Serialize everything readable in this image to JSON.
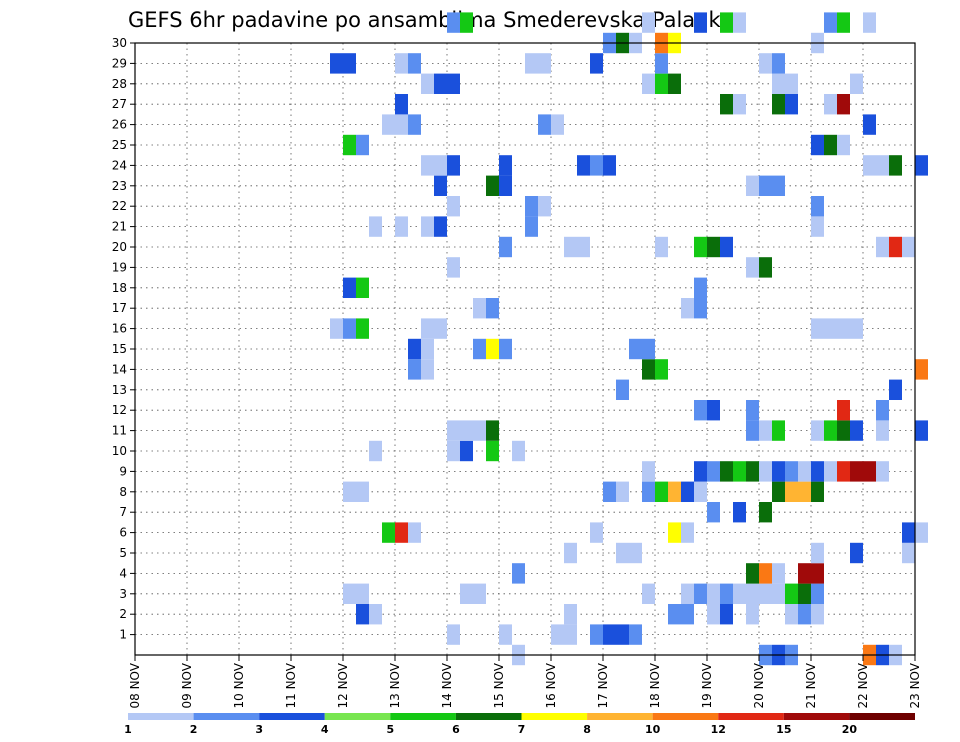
{
  "chart_data": {
    "type": "heatmap",
    "title": "GEFS 6hr padavine po ansamblima Smederevska Palanka",
    "xlabel": "",
    "ylabel": "",
    "x_ticks": [
      "08 NOV",
      "09 NOV",
      "10 NOV",
      "11 NOV",
      "12 NOV",
      "13 NOV",
      "14 NOV",
      "15 NOV",
      "16 NOV",
      "17 NOV",
      "18 NOV",
      "19 NOV",
      "20 NOV",
      "21 NOV",
      "22 NOV",
      "23 NOV"
    ],
    "y_ticks": [
      "1",
      "2",
      "3",
      "4",
      "5",
      "6",
      "7",
      "8",
      "9",
      "10",
      "11",
      "12",
      "13",
      "14",
      "15",
      "16",
      "17",
      "18",
      "19",
      "20",
      "21",
      "22",
      "23",
      "24",
      "25",
      "26",
      "27",
      "28",
      "29",
      "30"
    ],
    "grid": true,
    "legend_placement": "bottom",
    "legend": {
      "labels": [
        "1",
        "2",
        "3",
        "4",
        "5",
        "6",
        "7",
        "8",
        "10",
        "12",
        "15",
        "20"
      ],
      "colors": [
        "#b4c8f5",
        "#5a8ef0",
        "#1a50dc",
        "#78e650",
        "#14c814",
        "#0a6e0a",
        "#ffff00",
        "#ffb432",
        "#fa7814",
        "#e12814",
        "#a00a0a",
        "#6e0000"
      ]
    },
    "x_range": [
      "08 NOV",
      "23 NOV"
    ],
    "y_range": [
      0,
      30
    ],
    "cells": [
      [
        1,
        "14.00",
        0
      ],
      [
        1,
        "15.00",
        0
      ],
      [
        1,
        "16.00",
        0
      ],
      [
        1,
        "16.25",
        0
      ],
      [
        1,
        "16.75",
        1
      ],
      [
        1,
        "17.00",
        2
      ],
      [
        1,
        "17.25",
        2
      ],
      [
        1,
        "17.50",
        1
      ],
      [
        2,
        "12.25",
        2
      ],
      [
        2,
        "12.50",
        0
      ],
      [
        2,
        "16.25",
        0
      ],
      [
        2,
        "18.25",
        1
      ],
      [
        2,
        "18.50",
        1
      ],
      [
        2,
        "19.00",
        0
      ],
      [
        2,
        "19.25",
        2
      ],
      [
        2,
        "19.75",
        0
      ],
      [
        2,
        "20.50",
        0
      ],
      [
        2,
        "20.75",
        1
      ],
      [
        2,
        "21.00",
        0
      ],
      [
        3,
        "12.00",
        0
      ],
      [
        3,
        "12.25",
        0
      ],
      [
        3,
        "14.25",
        0
      ],
      [
        3,
        "14.50",
        0
      ],
      [
        3,
        "17.75",
        0
      ],
      [
        3,
        "18.50",
        0
      ],
      [
        3,
        "18.75",
        1
      ],
      [
        3,
        "19.00",
        0
      ],
      [
        3,
        "19.25",
        1
      ],
      [
        3,
        "19.50",
        0
      ],
      [
        3,
        "19.75",
        0
      ],
      [
        3,
        "20.00",
        0
      ],
      [
        3,
        "20.25",
        0
      ],
      [
        3,
        "20.50",
        4
      ],
      [
        3,
        "20.75",
        5
      ],
      [
        3,
        "21.00",
        1
      ],
      [
        4,
        "15.25",
        1
      ],
      [
        4,
        "19.75",
        5
      ],
      [
        4,
        "20.00",
        8
      ],
      [
        4,
        "20.25",
        0
      ],
      [
        4,
        "20.75",
        10
      ],
      [
        4,
        "21.00",
        10
      ],
      [
        5,
        "16.25",
        0
      ],
      [
        5,
        "17.25",
        0
      ],
      [
        5,
        "17.50",
        0
      ],
      [
        5,
        "21.00",
        0
      ],
      [
        5,
        "21.75",
        2
      ],
      [
        5,
        "22.75",
        0
      ],
      [
        6,
        "12.75",
        4
      ],
      [
        6,
        "13.00",
        9
      ],
      [
        6,
        "13.25",
        0
      ],
      [
        6,
        "16.75",
        0
      ],
      [
        6,
        "18.25",
        6
      ],
      [
        6,
        "18.50",
        0
      ],
      [
        6,
        "22.75",
        2
      ],
      [
        6,
        "23.00",
        0
      ],
      [
        7,
        "19.00",
        1
      ],
      [
        7,
        "19.50",
        2
      ],
      [
        7,
        "20.00",
        5
      ],
      [
        8,
        "12.00",
        0
      ],
      [
        8,
        "12.25",
        0
      ],
      [
        8,
        "17.00",
        1
      ],
      [
        8,
        "17.25",
        0
      ],
      [
        8,
        "17.75",
        1
      ],
      [
        8,
        "18.00",
        4
      ],
      [
        8,
        "18.25",
        7
      ],
      [
        8,
        "18.50",
        2
      ],
      [
        8,
        "18.75",
        0
      ],
      [
        8,
        "20.25",
        5
      ],
      [
        8,
        "20.50",
        7
      ],
      [
        8,
        "20.75",
        7
      ],
      [
        8,
        "21.00",
        5
      ],
      [
        9,
        "17.75",
        0
      ],
      [
        9,
        "18.75",
        2
      ],
      [
        9,
        "19.00",
        1
      ],
      [
        9,
        "19.25",
        5
      ],
      [
        9,
        "19.50",
        4
      ],
      [
        9,
        "19.75",
        5
      ],
      [
        9,
        "20.00",
        0
      ],
      [
        9,
        "20.25",
        2
      ],
      [
        9,
        "20.50",
        1
      ],
      [
        9,
        "20.75",
        0
      ],
      [
        9,
        "21.00",
        2
      ],
      [
        9,
        "21.25",
        0
      ],
      [
        9,
        "21.50",
        9
      ],
      [
        9,
        "21.75",
        10
      ],
      [
        9,
        "22.00",
        10
      ],
      [
        9,
        "22.25",
        0
      ],
      [
        10,
        "12.50",
        0
      ],
      [
        10,
        "14.00",
        0
      ],
      [
        10,
        "14.25",
        2
      ],
      [
        10,
        "14.75",
        4
      ],
      [
        10,
        "15.25",
        0
      ],
      [
        11,
        "14.00",
        0
      ],
      [
        11,
        "14.25",
        0
      ],
      [
        11,
        "14.50",
        0
      ],
      [
        11,
        "14.75",
        5
      ],
      [
        11,
        "19.75",
        1
      ],
      [
        11,
        "20.00",
        0
      ],
      [
        11,
        "20.25",
        4
      ],
      [
        11,
        "21.00",
        0
      ],
      [
        11,
        "21.25",
        4
      ],
      [
        11,
        "21.50",
        5
      ],
      [
        11,
        "21.75",
        2
      ],
      [
        11,
        "22.25",
        0
      ],
      [
        11,
        "23.00",
        2
      ],
      [
        12,
        "18.75",
        1
      ],
      [
        12,
        "19.00",
        2
      ],
      [
        12,
        "19.75",
        1
      ],
      [
        12,
        "21.50",
        9
      ],
      [
        12,
        "22.25",
        1
      ],
      [
        13,
        "17.25",
        1
      ],
      [
        13,
        "22.50",
        2
      ],
      [
        14,
        "13.25",
        1
      ],
      [
        14,
        "13.50",
        0
      ],
      [
        14,
        "17.75",
        5
      ],
      [
        14,
        "18.00",
        4
      ],
      [
        14,
        "23.00",
        8
      ],
      [
        15,
        "13.25",
        2
      ],
      [
        15,
        "13.50",
        0
      ],
      [
        15,
        "14.50",
        1
      ],
      [
        15,
        "14.75",
        6
      ],
      [
        15,
        "15.00",
        1
      ],
      [
        15,
        "17.50",
        1
      ],
      [
        15,
        "17.75",
        1
      ],
      [
        16,
        "11.75",
        0
      ],
      [
        16,
        "12.00",
        1
      ],
      [
        16,
        "12.25",
        4
      ],
      [
        16,
        "13.50",
        0
      ],
      [
        16,
        "13.75",
        0
      ],
      [
        16,
        "21.00",
        0
      ],
      [
        16,
        "21.25",
        0
      ],
      [
        16,
        "21.50",
        0
      ],
      [
        16,
        "21.75",
        0
      ],
      [
        17,
        "14.50",
        0
      ],
      [
        17,
        "14.75",
        1
      ],
      [
        17,
        "18.50",
        0
      ],
      [
        17,
        "18.75",
        1
      ],
      [
        18,
        "12.00",
        2
      ],
      [
        18,
        "12.25",
        4
      ],
      [
        18,
        "18.75",
        1
      ],
      [
        19,
        "14.00",
        0
      ],
      [
        19,
        "19.75",
        0
      ],
      [
        19,
        "20.00",
        5
      ],
      [
        20,
        "15.00",
        1
      ],
      [
        20,
        "16.25",
        0
      ],
      [
        20,
        "16.50",
        0
      ],
      [
        20,
        "18.00",
        0
      ],
      [
        20,
        "18.75",
        4
      ],
      [
        20,
        "19.00",
        5
      ],
      [
        20,
        "19.25",
        2
      ],
      [
        20,
        "22.25",
        0
      ],
      [
        20,
        "22.50",
        9
      ],
      [
        20,
        "22.75",
        0
      ],
      [
        21,
        "12.50",
        0
      ],
      [
        21,
        "13.00",
        0
      ],
      [
        21,
        "13.50",
        0
      ],
      [
        21,
        "13.75",
        2
      ],
      [
        21,
        "15.50",
        1
      ],
      [
        21,
        "21.00",
        0
      ],
      [
        22,
        "14.00",
        0
      ],
      [
        22,
        "15.50",
        1
      ],
      [
        22,
        "15.75",
        0
      ],
      [
        22,
        "21.00",
        1
      ],
      [
        23,
        "13.75",
        2
      ],
      [
        23,
        "14.75",
        5
      ],
      [
        23,
        "15.00",
        2
      ],
      [
        23,
        "19.75",
        0
      ],
      [
        23,
        "20.00",
        1
      ],
      [
        23,
        "20.25",
        1
      ],
      [
        24,
        "13.50",
        0
      ],
      [
        24,
        "13.75",
        0
      ],
      [
        24,
        "14.00",
        2
      ],
      [
        24,
        "15.00",
        2
      ],
      [
        24,
        "16.50",
        2
      ],
      [
        24,
        "16.75",
        1
      ],
      [
        24,
        "17.00",
        2
      ],
      [
        24,
        "22.00",
        0
      ],
      [
        24,
        "22.25",
        0
      ],
      [
        24,
        "22.50",
        5
      ],
      [
        24,
        "23.00",
        2
      ],
      [
        25,
        "12.00",
        4
      ],
      [
        25,
        "12.25",
        1
      ],
      [
        25,
        "21.00",
        2
      ],
      [
        25,
        "21.25",
        5
      ],
      [
        25,
        "21.50",
        0
      ],
      [
        26,
        "12.75",
        0
      ],
      [
        26,
        "13.00",
        0
      ],
      [
        26,
        "13.25",
        1
      ],
      [
        26,
        "15.75",
        1
      ],
      [
        26,
        "16.00",
        0
      ],
      [
        26,
        "22.00",
        2
      ],
      [
        27,
        "13.00",
        2
      ],
      [
        27,
        "19.25",
        5
      ],
      [
        27,
        "19.50",
        0
      ],
      [
        27,
        "20.25",
        5
      ],
      [
        27,
        "20.50",
        2
      ],
      [
        27,
        "21.25",
        0
      ],
      [
        27,
        "21.50",
        10
      ],
      [
        28,
        "13.50",
        0
      ],
      [
        28,
        "13.75",
        2
      ],
      [
        28,
        "14.00",
        2
      ],
      [
        28,
        "17.75",
        0
      ],
      [
        28,
        "18.00",
        4
      ],
      [
        28,
        "18.25",
        5
      ],
      [
        28,
        "20.25",
        0
      ],
      [
        28,
        "20.50",
        0
      ],
      [
        28,
        "21.75",
        0
      ],
      [
        29,
        "11.75",
        2
      ],
      [
        29,
        "12.00",
        2
      ],
      [
        29,
        "13.00",
        0
      ],
      [
        29,
        "13.25",
        1
      ],
      [
        29,
        "15.50",
        0
      ],
      [
        29,
        "15.75",
        0
      ],
      [
        29,
        "16.75",
        2
      ],
      [
        29,
        "18.00",
        1
      ],
      [
        29,
        "20.00",
        0
      ],
      [
        29,
        "20.25",
        1
      ],
      [
        30,
        "17.00",
        1
      ],
      [
        30,
        "17.25",
        5
      ],
      [
        30,
        "17.50",
        0
      ],
      [
        30,
        "18.00",
        8
      ],
      [
        30,
        "18.25",
        6
      ],
      [
        30,
        "21.00",
        0
      ],
      [
        31,
        "14.00",
        1
      ],
      [
        31,
        "14.25",
        4
      ],
      [
        31,
        "17.75",
        0
      ],
      [
        31,
        "18.75",
        2
      ],
      [
        31,
        "19.25",
        4
      ],
      [
        31,
        "19.50",
        0
      ],
      [
        31,
        "21.25",
        1
      ],
      [
        31,
        "21.50",
        4
      ],
      [
        31,
        "22.00",
        0
      ],
      [
        0,
        "15.25",
        0
      ],
      [
        0,
        "20.00",
        1
      ],
      [
        0,
        "20.25",
        2
      ],
      [
        0,
        "20.50",
        1
      ],
      [
        0,
        "22.00",
        8
      ],
      [
        0,
        "22.25",
        2
      ],
      [
        0,
        "22.50",
        0
      ]
    ]
  }
}
